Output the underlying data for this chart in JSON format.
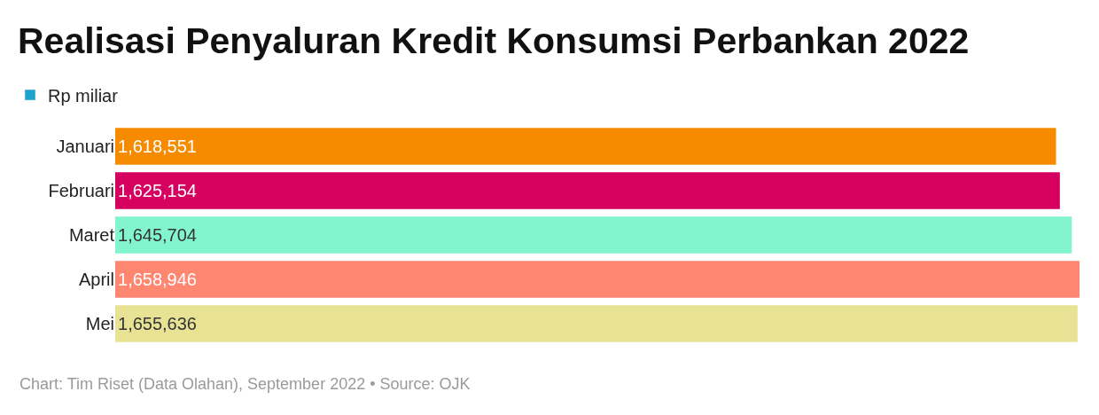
{
  "chart_data": {
    "type": "bar",
    "orientation": "horizontal",
    "title": "Realisasi Penyaluran Kredit Konsumsi Perbankan 2022",
    "categories": [
      "Januari",
      "Februari",
      "Maret",
      "April",
      "Mei"
    ],
    "series": [
      {
        "name": "Rp miliar",
        "color": "#1fa2cc",
        "colors": [
          "#f68b00",
          "#d5005f",
          "#82f5cf",
          "#ff8670",
          "#e8e294"
        ],
        "values": [
          1618551,
          1625154,
          1645704,
          1658946,
          1655636
        ],
        "value_labels": [
          "1,618,551",
          "1,625,154",
          "1,645,704",
          "1,658,946",
          "1,655,636"
        ]
      }
    ],
    "legend": "top left",
    "tick_labels": "y",
    "annotations": [
      "Chart: Tim Riset (Data Olahan), September 2022 • Source: OJK"
    ]
  }
}
